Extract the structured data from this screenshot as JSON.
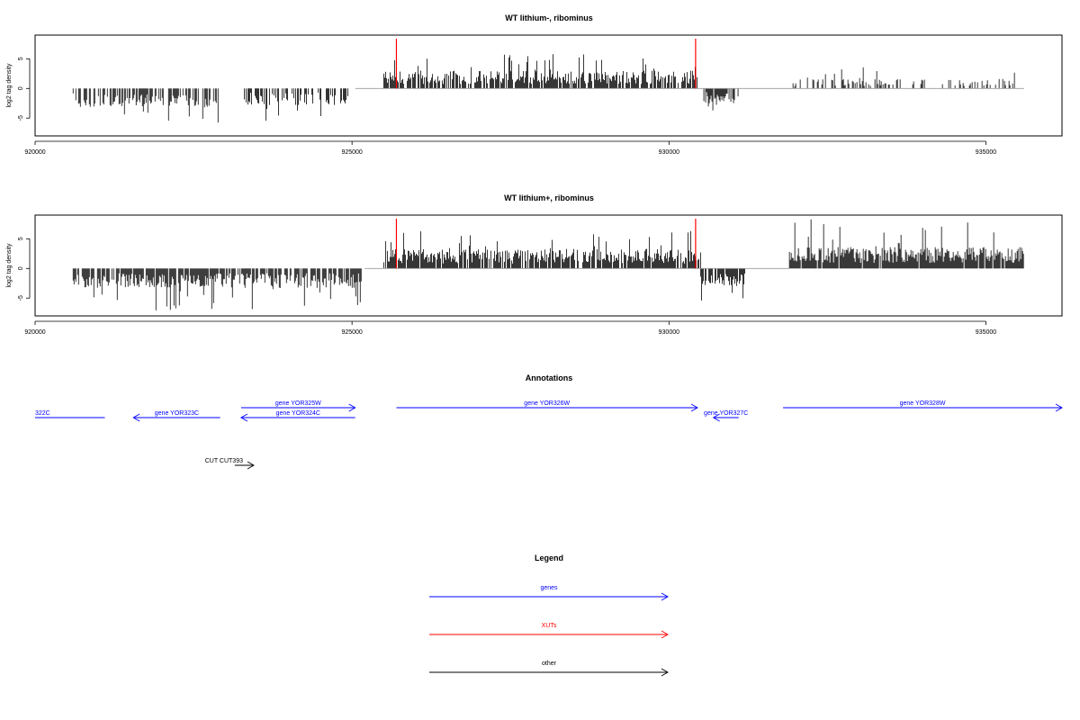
{
  "chart_data": [
    {
      "type": "bar",
      "title": "WT lithium-, ribominus",
      "ylabel": "log2 tag density",
      "xlim": [
        920000,
        936200
      ],
      "ylim": [
        -8,
        9
      ],
      "xticks": [
        920000,
        925000,
        930000,
        935000
      ],
      "yticks": [
        -5,
        0,
        5
      ],
      "grid": false,
      "colors": {
        "signal": "#000000",
        "marker": "#ff0000",
        "baseline": "#999999"
      },
      "markers_x": [
        925700,
        930420
      ],
      "baseline_range": [
        925050,
        935600
      ],
      "segments": [
        {
          "x": [
            920600,
            922900
          ],
          "sign": -1,
          "amp": 3.2,
          "peak": 6.5,
          "density": 0.55
        },
        {
          "x": [
            923300,
            924950
          ],
          "sign": -1,
          "amp": 2.8,
          "peak": 5.6,
          "density": 0.55
        },
        {
          "x": [
            925500,
            930450
          ],
          "sign": 1,
          "amp": 3.0,
          "peak": 6.0,
          "density": 0.75
        },
        {
          "x": [
            930550,
            931100
          ],
          "sign": -1,
          "amp": 2.5,
          "peak": 3.7,
          "density": 0.8
        },
        {
          "x": [
            931900,
            935600
          ],
          "sign": 1,
          "amp": 1.6,
          "peak": 3.8,
          "density": 0.3
        }
      ]
    },
    {
      "type": "bar",
      "title": "WT lithium+, ribominus",
      "ylabel": "log2 tag density",
      "xlim": [
        920000,
        936200
      ],
      "ylim": [
        -8,
        9
      ],
      "xticks": [
        920000,
        925000,
        930000,
        935000
      ],
      "yticks": [
        -5,
        0,
        5
      ],
      "grid": false,
      "colors": {
        "signal": "#000000",
        "marker": "#ff0000",
        "baseline": "#999999"
      },
      "markers_x": [
        925700,
        930420
      ],
      "baseline_range": [
        925200,
        931900
      ],
      "segments": [
        {
          "x": [
            920600,
            925150
          ],
          "sign": -1,
          "amp": 3.3,
          "peak": 7.2,
          "density": 0.8
        },
        {
          "x": [
            925500,
            930500
          ],
          "sign": 1,
          "amp": 3.3,
          "peak": 6.5,
          "density": 0.9
        },
        {
          "x": [
            930500,
            931200
          ],
          "sign": -1,
          "amp": 3.0,
          "peak": 5.5,
          "density": 0.85
        },
        {
          "x": [
            931900,
            935600
          ],
          "sign": 1,
          "amp": 3.6,
          "peak": 8.5,
          "density": 0.95
        }
      ]
    }
  ],
  "annotations": {
    "title": "Annotations",
    "features": [
      {
        "label": "322C",
        "class": "genes",
        "strand": "-",
        "start": 920000,
        "end": 921100,
        "row": 1
      },
      {
        "label": "gene YOR323C",
        "class": "genes",
        "strand": "-",
        "start": 921550,
        "end": 922920,
        "row": 1
      },
      {
        "label": "gene YOR324C",
        "class": "genes",
        "strand": "-",
        "start": 923250,
        "end": 925050,
        "row": 1
      },
      {
        "label": "gene YOR325W",
        "class": "genes",
        "strand": "+",
        "start": 923250,
        "end": 925050,
        "row": 0
      },
      {
        "label": "gene YOR326W",
        "class": "genes",
        "strand": "+",
        "start": 925700,
        "end": 930450,
        "row": 0
      },
      {
        "label": "gene YOR327C",
        "class": "genes",
        "strand": "-",
        "start": 930700,
        "end": 931100,
        "row": 1
      },
      {
        "label": "gene YOR328W",
        "class": "genes",
        "strand": "+",
        "start": 931800,
        "end": 936200,
        "row": 0
      },
      {
        "label": "CUT CUT393",
        "class": "other",
        "strand": "+",
        "start": 923150,
        "end": 923450,
        "row": 2
      }
    ]
  },
  "legend": {
    "title": "Legend",
    "items": [
      {
        "label": "genes",
        "color": "#0000ff"
      },
      {
        "label": "XUTs",
        "color": "#ff0000"
      },
      {
        "label": "other",
        "color": "#000000"
      }
    ]
  }
}
